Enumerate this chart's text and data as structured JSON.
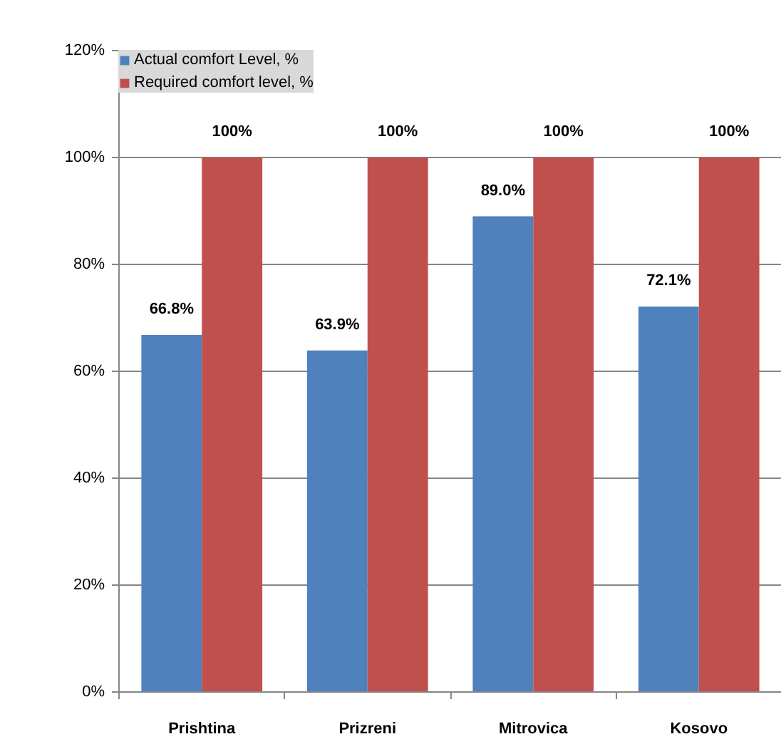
{
  "chart_data": {
    "type": "bar",
    "categories": [
      "Prishtina",
      "Prizreni",
      "Mitrovica",
      "Kosovo"
    ],
    "series": [
      {
        "name": "Actual comfort Level, %",
        "color": "#4f81bd",
        "values": [
          66.8,
          63.9,
          89.0,
          72.1
        ],
        "value_labels": [
          "66.8%",
          "63.9%",
          "89.0%",
          "72.1%"
        ]
      },
      {
        "name": "Required comfort level, %",
        "color": "#c0504d",
        "values": [
          100,
          100,
          100,
          100
        ],
        "value_labels": [
          "100%",
          "100%",
          "100%",
          "100%"
        ]
      }
    ],
    "ylim": [
      0,
      120
    ],
    "yticks": [
      {
        "value": 0,
        "label": "0%"
      },
      {
        "value": 20,
        "label": "20%"
      },
      {
        "value": 40,
        "label": "40%"
      },
      {
        "value": 60,
        "label": "60%"
      },
      {
        "value": 80,
        "label": "80%"
      },
      {
        "value": 100,
        "label": "100%"
      },
      {
        "value": 120,
        "label": "120%"
      }
    ],
    "grid": "y",
    "legend": "top left"
  }
}
